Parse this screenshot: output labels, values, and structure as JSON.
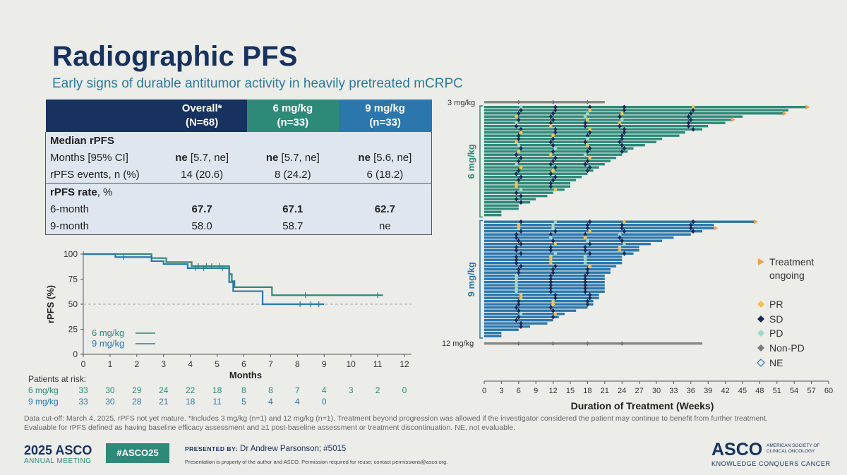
{
  "title": "Radiographic PFS",
  "subtitle": "Early signs of durable antitumor activity in heavily pretreated mCRPC",
  "table": {
    "headers": [
      {
        "line1": "",
        "line2": ""
      },
      {
        "line1": "Overall*",
        "line2": "(N=68)"
      },
      {
        "line1": "6 mg/kg",
        "line2": "(n=33)"
      },
      {
        "line1": "9 mg/kg",
        "line2": "(n=33)"
      }
    ],
    "section1": "Median rPFS",
    "row_months": {
      "label": "Months [95% CI]",
      "cells": [
        {
          "b": "ne",
          "r": " [5.7, ne]"
        },
        {
          "b": "ne",
          "r": " [5.7, ne]"
        },
        {
          "b": "ne",
          "r": " [5.6, ne]"
        }
      ]
    },
    "row_events": {
      "label": "rPFS events, n (%)",
      "cells": [
        "14 (20.6)",
        "8 (24.2)",
        "6 (18.2)"
      ]
    },
    "section2_bold": "rPFS rate",
    "section2_rest": ", %",
    "row_6m": {
      "label": "6-month",
      "cells": [
        "67.7",
        "67.1",
        "62.7"
      ]
    },
    "row_9m": {
      "label": "9-month",
      "cells": [
        "58.0",
        "58.7",
        "ne"
      ]
    }
  },
  "colors": {
    "navy": "#17325e",
    "green": "#2e8a78",
    "blue": "#2b77ad",
    "pr": "#f2c14e",
    "sd": "#1b2a55",
    "pd": "#9fd9c6",
    "nonpd": "#7a7a7a",
    "ongoing": "#f0a04b"
  },
  "chart_data": [
    {
      "type": "line",
      "xlabel": "Months",
      "ylabel": "rPFS (%)",
      "xlim": [
        0,
        12
      ],
      "ylim": [
        0,
        100
      ],
      "xticks": [
        0,
        1,
        2,
        3,
        4,
        5,
        6,
        7,
        8,
        9,
        10,
        11,
        12
      ],
      "yticks": [
        0,
        25,
        50,
        75,
        100
      ],
      "reference_line": 50,
      "series": [
        {
          "name": "6 mg/kg",
          "color": "#2e8a78",
          "x": [
            0,
            2.55,
            2.55,
            3.1,
            3.1,
            4.05,
            4.05,
            5.45,
            5.45,
            5.55,
            5.55,
            5.65,
            5.65,
            7.05,
            7.05,
            11.2
          ],
          "y": [
            100,
            100,
            96,
            96,
            92,
            92,
            88,
            88,
            80,
            80,
            73,
            73,
            67,
            67,
            59,
            59
          ]
        },
        {
          "name": "9 mg/kg",
          "color": "#2b77ad",
          "x": [
            0,
            1.2,
            1.2,
            2.55,
            2.55,
            3.0,
            3.0,
            3.9,
            3.9,
            5.45,
            5.45,
            5.6,
            5.6,
            6.7,
            6.7,
            9.0
          ],
          "y": [
            100,
            100,
            97,
            97,
            93,
            93,
            90,
            90,
            86,
            86,
            72,
            72,
            63,
            63,
            50,
            50
          ]
        }
      ],
      "risk_table": {
        "title": "Patients at risk:",
        "rows": [
          {
            "label": "6 mg/kg",
            "color": "#2e8a78",
            "values": [
              "33",
              "30",
              "29",
              "24",
              "22",
              "18",
              "8",
              "8",
              "7",
              "4",
              "3",
              "2",
              "0"
            ]
          },
          {
            "label": "9 mg/kg",
            "color": "#2b77ad",
            "values": [
              "33",
              "30",
              "28",
              "21",
              "18",
              "11",
              "5",
              "4",
              "4",
              "0",
              "",
              "",
              ""
            ]
          }
        ]
      }
    },
    {
      "type": "bar",
      "orientation": "horizontal",
      "xlabel": "Duration of Treatment (Weeks)",
      "xlim": [
        0,
        60
      ],
      "xticks": [
        0,
        3,
        6,
        9,
        12,
        15,
        18,
        21,
        24,
        27,
        30,
        33,
        36,
        39,
        42,
        45,
        48,
        51,
        54,
        57,
        60
      ],
      "groups": [
        {
          "name": "6 mg/kg",
          "color": "#2e8a78",
          "durations": [
            56,
            53,
            52,
            45,
            43,
            42,
            39,
            38,
            35,
            34,
            31,
            30,
            28,
            26,
            25,
            24,
            23,
            22,
            21,
            20,
            19,
            18,
            17,
            16,
            15,
            15,
            14,
            12,
            11,
            9,
            8,
            6,
            6,
            3,
            3
          ]
        },
        {
          "name": "9 mg/kg",
          "color": "#2b77ad",
          "durations": [
            47,
            40,
            40,
            38,
            36,
            33,
            31,
            29,
            27,
            27,
            26,
            24,
            24,
            24,
            23,
            22,
            22,
            21,
            21,
            21,
            21,
            21,
            21,
            20,
            20,
            19,
            19,
            18,
            16,
            14,
            13,
            12,
            11,
            8,
            6,
            3,
            3
          ]
        }
      ],
      "extra_rows": [
        {
          "name": "3 mg/kg",
          "duration": 21
        },
        {
          "name": "12 mg/kg",
          "duration": 38
        }
      ],
      "legend": [
        "Treatment ongoing",
        "PR",
        "SD",
        "PD",
        "Non-PD",
        "NE"
      ]
    }
  ],
  "legend_km": [
    "6 mg/kg",
    "9 mg/kg"
  ],
  "swimmer_labels": {
    "top": "3 mg/kg",
    "bottom": "12 mg/kg",
    "g1": "6 mg/kg",
    "g2": "9 mg/kg"
  },
  "footnote_line1": "Data cut-off: March 4, 2025. rPFS not yet mature. *Includes 3 mg/kg (n=1) and 12 mg/kg (n=1). Treatment beyond progression was allowed if the investigator considered the patient may continue to benefit from further treatment.",
  "footnote_line2": "Evaluable for rPFS defined as having baseline efficacy assessment and ≥1 post-baseline assessment or treatment discontinuation. NE, not evaluable.",
  "footer": {
    "year": "2025",
    "asco": "ASCO",
    "annual": "ANNUAL MEETING",
    "hashtag": "#ASCO25",
    "presented_label": "PRESENTED BY:",
    "presenter": "Dr Andrew Parsonson; #5015",
    "property": "Presentation is property of the author and ASCO. Permission required for reuse; contact permissions@asco.org.",
    "logo": "ASCO",
    "logo_sub": "AMERICAN SOCIETY OF CLINICAL ONCOLOGY",
    "logo_tag": "KNOWLEDGE CONQUERS CANCER"
  }
}
